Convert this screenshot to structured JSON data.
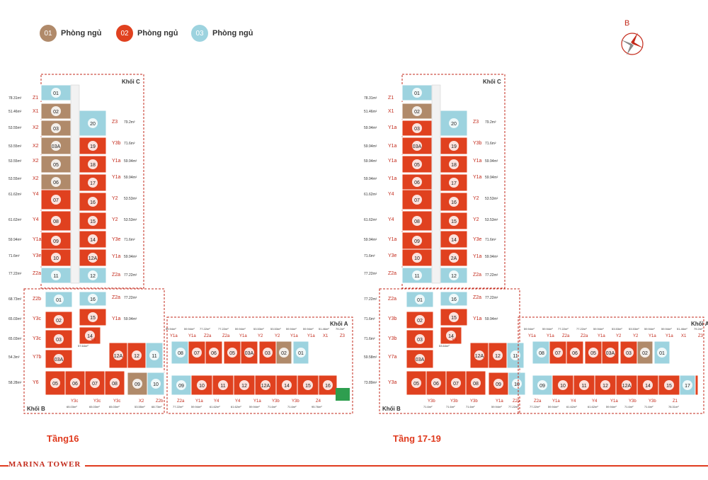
{
  "colors": {
    "tan": "#b08a6a",
    "red": "#e0411f",
    "blue": "#9dd3df",
    "green": "#2e9e4f",
    "accent": "#e03a1e"
  },
  "legend": [
    {
      "num": "01",
      "label": "Phòng ngủ",
      "color": "#b08a6a"
    },
    {
      "num": "02",
      "label": "Phòng ngủ",
      "color": "#e0411f"
    },
    {
      "num": "03",
      "label": "Phòng ngủ",
      "color": "#9dd3df"
    }
  ],
  "compass": {
    "north": "B",
    "icon": "compass-rose-icon"
  },
  "plans": [
    {
      "title": "Tầng16",
      "blocks": {
        "c": "Khối C",
        "b": "Khối B",
        "a": "Khối A"
      },
      "left_labels": [
        {
          "area": "78.31m²",
          "type": "Z1"
        },
        {
          "area": "51.46m²",
          "type": "X1"
        },
        {
          "area": "53.55m²",
          "type": "X2"
        },
        {
          "area": "53.55m²",
          "type": "X2"
        },
        {
          "area": "53.55m²",
          "type": "X2"
        },
        {
          "area": "53.55m²",
          "type": "X2"
        },
        {
          "area": "61.62m²",
          "type": "Y4"
        },
        {
          "area": "61.62m²",
          "type": "Y4"
        },
        {
          "area": "59.94m²",
          "type": "Y1a"
        },
        {
          "area": "71.6m²",
          "type": "Y3e"
        },
        {
          "area": "77.22m²",
          "type": "Z2a"
        },
        {
          "area": "68.73m²",
          "type": "Z2b"
        },
        {
          "area": "65.03m²",
          "type": "Y3c"
        },
        {
          "area": "65.03m²",
          "type": "Y3c"
        },
        {
          "area": "54.3m²",
          "type": "Y7b"
        },
        {
          "area": "58.28m²",
          "type": "Y6"
        }
      ],
      "right_labels": [
        {
          "type": "Z3",
          "area": "79.2m²"
        },
        {
          "type": "Y3b",
          "area": "71.6m²"
        },
        {
          "type": "Y1a",
          "area": "59.94m²"
        },
        {
          "type": "Y1a",
          "area": "59.94m²"
        },
        {
          "type": "Y2",
          "area": "53.53m²"
        },
        {
          "type": "Y2",
          "area": "53.53m²"
        },
        {
          "type": "Y3e",
          "area": "71.6m²"
        },
        {
          "type": "Y1a",
          "area": "59.94m²"
        },
        {
          "type": "Z2a",
          "area": "77.22m²"
        },
        {
          "type": "Z2a",
          "area": "77.22m²"
        },
        {
          "type": "Y1a",
          "area": "59.94m²"
        }
      ],
      "c_units": [
        "01",
        "02",
        "03",
        "03A",
        "05",
        "06",
        "07",
        "08",
        "09",
        "10",
        "11",
        "20",
        "19",
        "18",
        "17",
        "16",
        "15",
        "14",
        "12A",
        "12"
      ],
      "b_units": [
        "01",
        "02",
        "03",
        "03A",
        "05",
        "06",
        "07",
        "08",
        "16",
        "15",
        "14",
        "12A",
        "12",
        "11",
        "10",
        "09"
      ],
      "a_units": [
        "08",
        "07",
        "06",
        "05",
        "03A",
        "03",
        "02",
        "01",
        "09",
        "10",
        "11",
        "12",
        "12A",
        "14",
        "15",
        "16"
      ],
      "a_top": [
        {
          "area": "59.94m²",
          "type": "Y1a"
        },
        {
          "area": "59.94m²",
          "type": "Y1a"
        },
        {
          "area": "77.22m²",
          "type": "Z2a"
        },
        {
          "area": "77.22m²",
          "type": "Z2a"
        },
        {
          "area": "59.94m²",
          "type": "Y1a"
        },
        {
          "area": "53.53m²",
          "type": "Y2"
        },
        {
          "area": "53.53m²",
          "type": "Y2"
        },
        {
          "area": "59.94m²",
          "type": "Y1a"
        },
        {
          "area": "59.94m²",
          "type": "Y1a"
        },
        {
          "area": "51.46m²",
          "type": "X1"
        },
        {
          "area": "79.2m²",
          "type": "Z3"
        }
      ],
      "bottom": [
        {
          "type": "Y3c",
          "area": "65.03m²"
        },
        {
          "type": "Y3c",
          "area": "65.03m²"
        },
        {
          "type": "Y3c",
          "area": "65.03m²"
        },
        {
          "type": "X2",
          "area": "53.55m²"
        },
        {
          "type": "Z2b",
          "area": "68.73m²"
        },
        {
          "type": "Z2a",
          "area": "77.22m²"
        },
        {
          "type": "Y1a",
          "area": "59.94m²"
        },
        {
          "type": "Y4",
          "area": "61.62m²"
        },
        {
          "type": "Y4",
          "area": "61.62m²"
        },
        {
          "type": "Y1a",
          "area": "59.94m²"
        },
        {
          "type": "Y3b",
          "area": "71.6m²"
        },
        {
          "type": "Y3b",
          "area": "71.6m²"
        },
        {
          "type": "Z4",
          "area": "95.76m²"
        }
      ],
      "y5": {
        "type": "Y5",
        "area": "57.64m²"
      }
    },
    {
      "title": "Tầng 17-19",
      "blocks": {
        "c": "Khối C",
        "b": "Khối B",
        "a": "Khối A"
      },
      "left_labels": [
        {
          "area": "78.31m²",
          "type": "Z1"
        },
        {
          "area": "51.46m²",
          "type": "X1"
        },
        {
          "area": "59.94m²",
          "type": "Y1a"
        },
        {
          "area": "59.94m²",
          "type": "Y1a"
        },
        {
          "area": "59.94m²",
          "type": "Y1a"
        },
        {
          "area": "59.94m²",
          "type": "Y1a"
        },
        {
          "area": "61.62m²",
          "type": "Y4"
        },
        {
          "area": "61.62m²",
          "type": "Y4"
        },
        {
          "area": "59.94m²",
          "type": "Y1a"
        },
        {
          "area": "71.6m²",
          "type": "Y3e"
        },
        {
          "area": "77.22m²",
          "type": "Z2a"
        },
        {
          "area": "77.22m²",
          "type": "Z2a"
        },
        {
          "area": "71.6m²",
          "type": "Y3b"
        },
        {
          "area": "71.6m²",
          "type": "Y3b"
        },
        {
          "area": "59.58m²",
          "type": "Y7a"
        },
        {
          "area": "73.89m²",
          "type": "Y3a"
        }
      ],
      "right_labels": [
        {
          "type": "Z3",
          "area": "79.2m²"
        },
        {
          "type": "Y3b",
          "area": "71.6m²"
        },
        {
          "type": "Y1a",
          "area": "59.94m²"
        },
        {
          "type": "Y1a",
          "area": "59.94m²"
        },
        {
          "type": "Y2",
          "area": "53.53m²"
        },
        {
          "type": "Y2",
          "area": "53.53m²"
        },
        {
          "type": "Y3e",
          "area": "71.6m²"
        },
        {
          "type": "Y1a",
          "area": "59.94m²"
        },
        {
          "type": "Z2a",
          "area": "77.22m²"
        },
        {
          "type": "Z2a",
          "area": "77.22m²"
        },
        {
          "type": "Y1a",
          "area": "59.94m²"
        }
      ],
      "c_units": [
        "01",
        "02",
        "03",
        "03A",
        "05",
        "06",
        "07",
        "08",
        "09",
        "10",
        "11",
        "20",
        "19",
        "18",
        "17",
        "16",
        "15",
        "14",
        "2A",
        "12"
      ],
      "b_units": [
        "01",
        "02",
        "03",
        "03A",
        "05",
        "06",
        "07",
        "08",
        "16",
        "15",
        "14",
        "12A",
        "12",
        "11",
        "10",
        "09"
      ],
      "a_units": [
        "08",
        "07",
        "06",
        "05",
        "03A",
        "03",
        "02",
        "01",
        "09",
        "10",
        "11",
        "12",
        "12A",
        "14",
        "15",
        "16",
        "17"
      ],
      "a_top": [
        {
          "area": "59.94m²",
          "type": "Y1a"
        },
        {
          "area": "59.94m²",
          "type": "Y1a"
        },
        {
          "area": "77.22m²",
          "type": "Z2a"
        },
        {
          "area": "77.22m²",
          "type": "Z2a"
        },
        {
          "area": "59.94m²",
          "type": "Y1a"
        },
        {
          "area": "53.53m²",
          "type": "Y2"
        },
        {
          "area": "53.53m²",
          "type": "Y2"
        },
        {
          "area": "59.94m²",
          "type": "Y1a"
        },
        {
          "area": "59.94m²",
          "type": "Y1a"
        },
        {
          "area": "51.46m²",
          "type": "X1"
        },
        {
          "area": "79.2m²",
          "type": "Z3"
        }
      ],
      "bottom": [
        {
          "type": "Y3b",
          "area": "71.6m²"
        },
        {
          "type": "Y3b",
          "area": "71.6m²"
        },
        {
          "type": "Y3b",
          "area": "71.6m²"
        },
        {
          "type": "Y1a",
          "area": "59.94m²"
        },
        {
          "type": "Z2a",
          "area": "77.22m²"
        },
        {
          "type": "Z2a",
          "area": "77.22m²"
        },
        {
          "type": "Y1a",
          "area": "59.94m²"
        },
        {
          "type": "Y4",
          "area": "61.62m²"
        },
        {
          "type": "Y4",
          "area": "61.62m²"
        },
        {
          "type": "Y1a",
          "area": "59.94m²"
        },
        {
          "type": "Y3b",
          "area": "71.6m²"
        },
        {
          "type": "Y3b",
          "area": "71.6m²"
        },
        {
          "type": "Z1",
          "area": "78.31m²"
        }
      ],
      "y5": {
        "type": "Y5",
        "area": "53.64m²"
      }
    }
  ],
  "brand": "MARINA TOWER"
}
